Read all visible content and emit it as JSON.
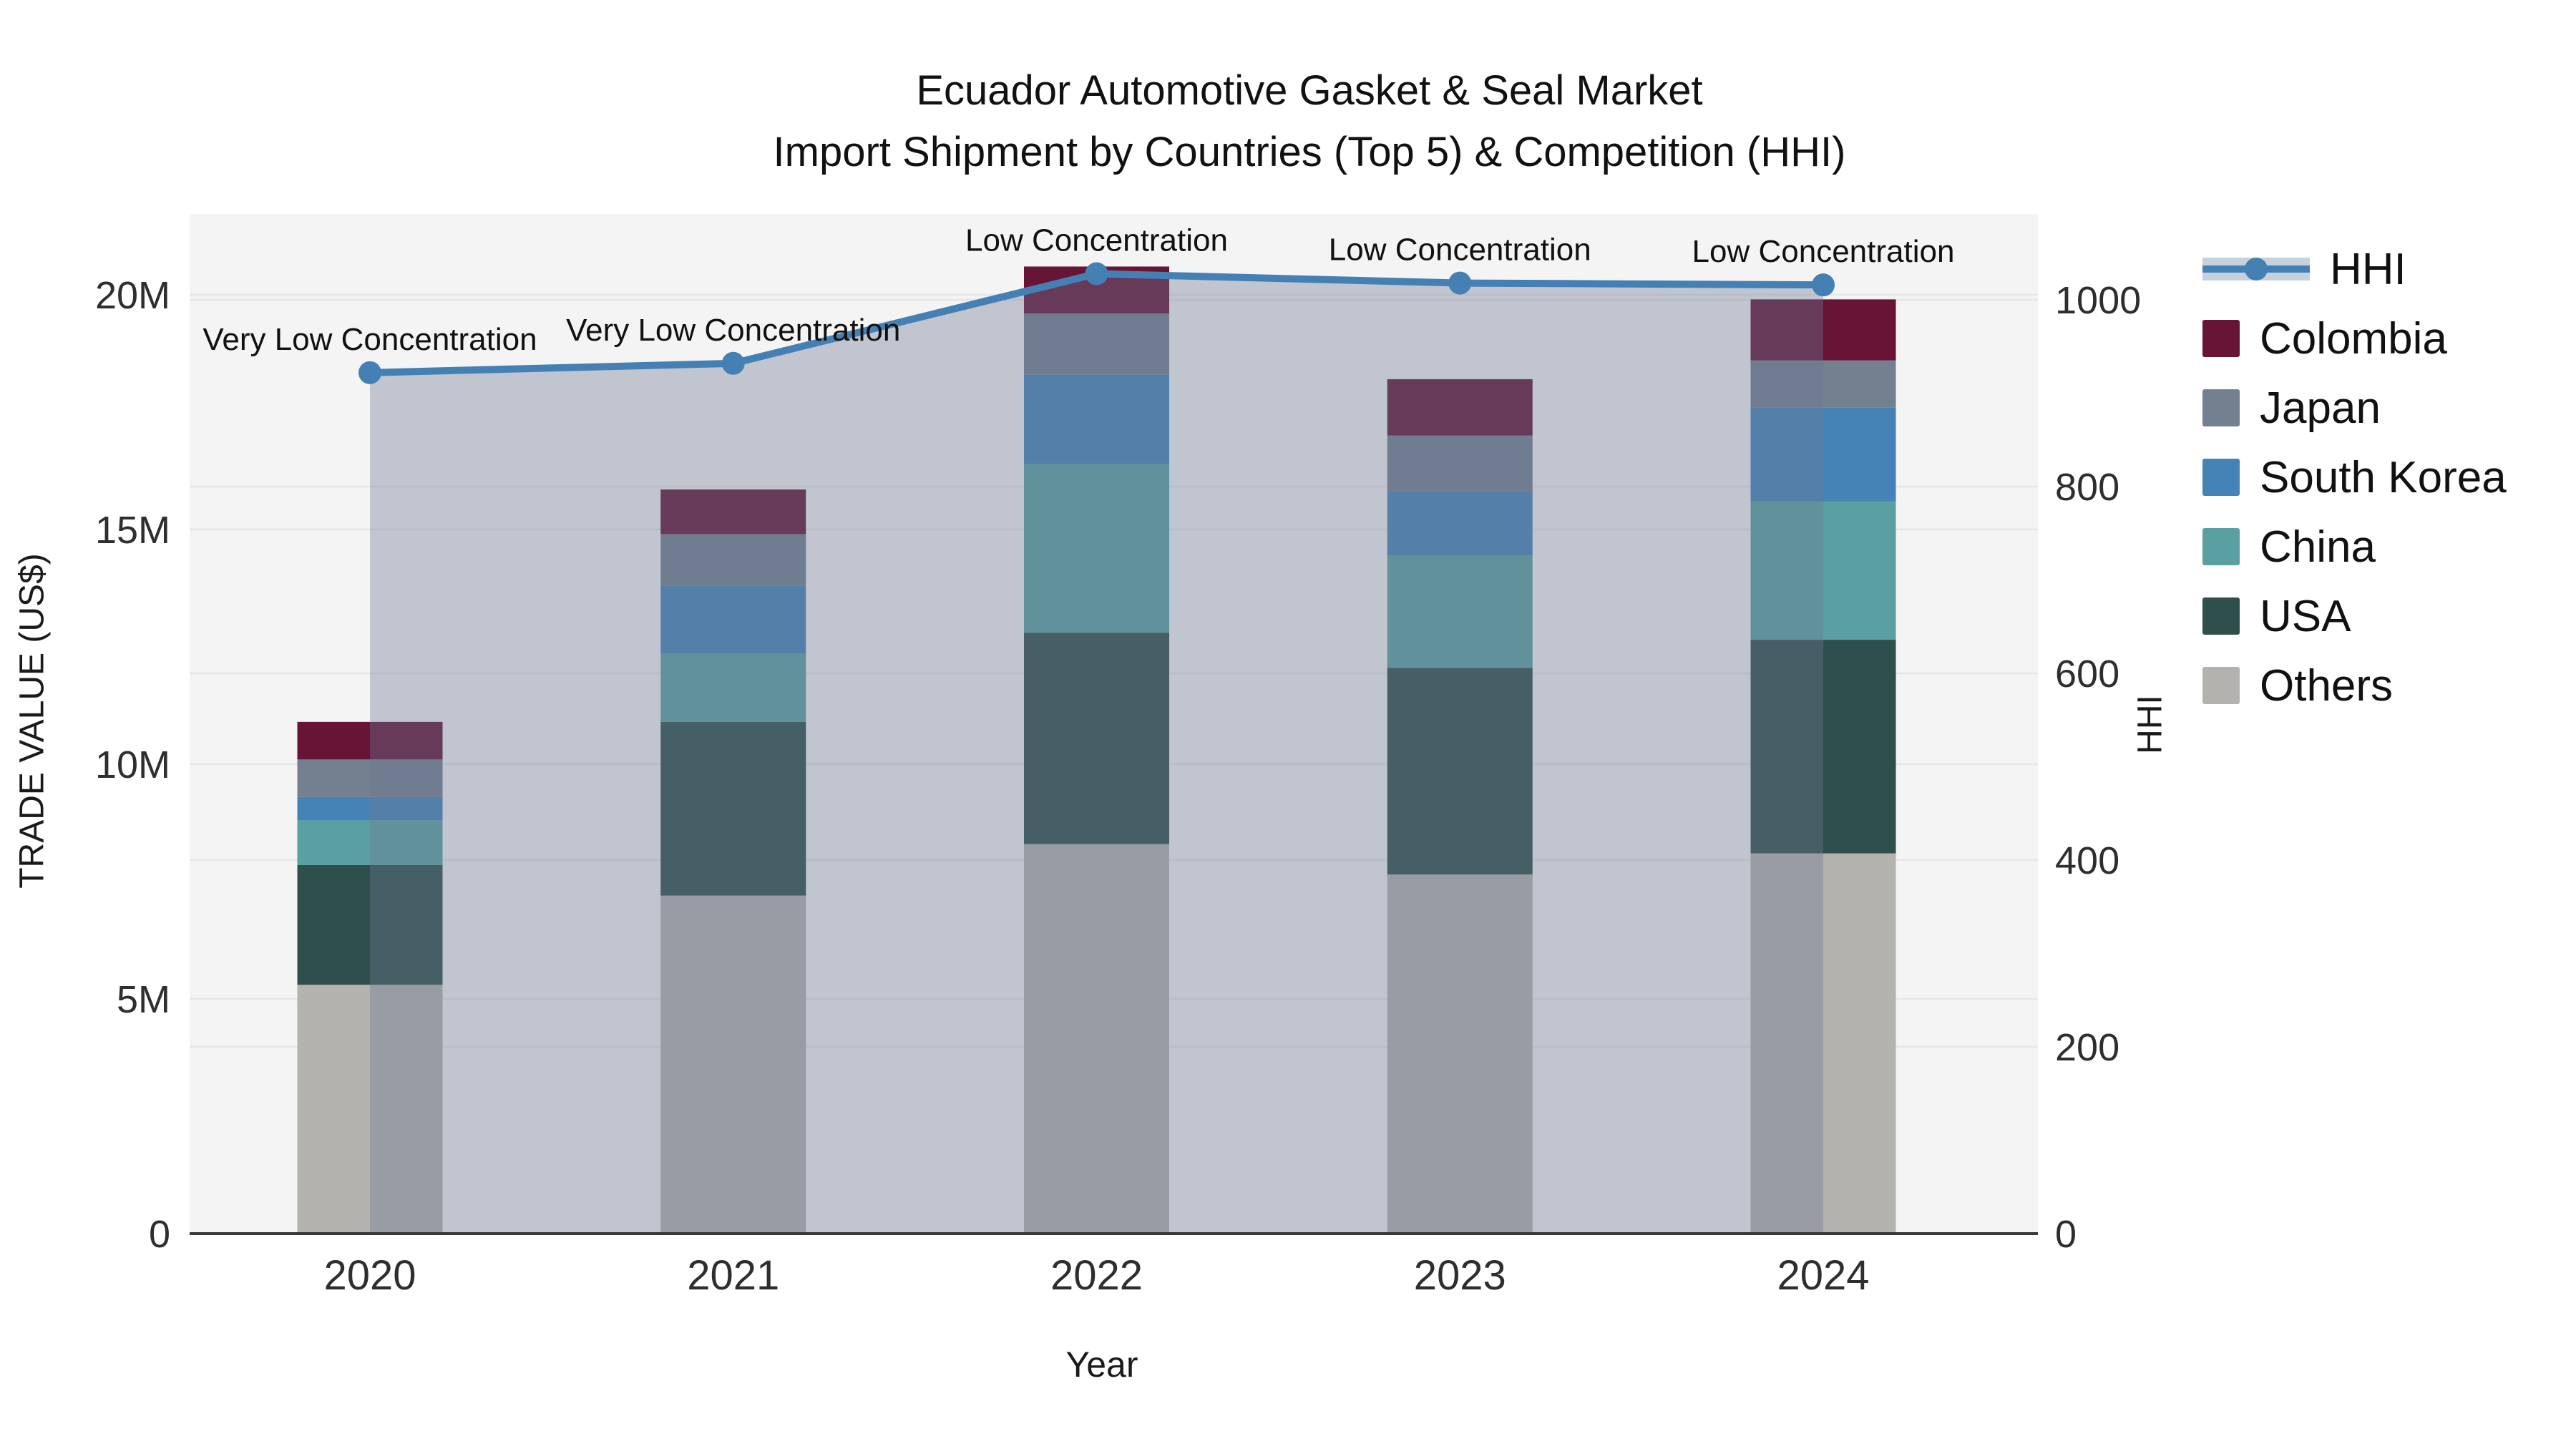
{
  "title": {
    "line1": "Ecuador Automotive Gasket & Seal Market",
    "line2": "Import Shipment by Countries (Top 5) & Competition (HHI)"
  },
  "axes": {
    "y_left_title": "TRADE VALUE (US$)",
    "y_right_title": "HHI",
    "x_title": "Year",
    "y_left_ticks": [
      {
        "value": 0,
        "label": "0"
      },
      {
        "value": 5,
        "label": "5M"
      },
      {
        "value": 10,
        "label": "10M"
      },
      {
        "value": 15,
        "label": "15M"
      },
      {
        "value": 20,
        "label": "20M"
      }
    ],
    "y_right_ticks": [
      {
        "value": 0,
        "label": "0"
      },
      {
        "value": 200,
        "label": "200"
      },
      {
        "value": 400,
        "label": "400"
      },
      {
        "value": 600,
        "label": "600"
      },
      {
        "value": 800,
        "label": "800"
      },
      {
        "value": 1000,
        "label": "1000"
      }
    ]
  },
  "legend": [
    {
      "label": "HHI",
      "type": "line"
    },
    {
      "label": "Colombia",
      "type": "swatch",
      "color": "#671437"
    },
    {
      "label": "Japan",
      "type": "swatch",
      "color": "#73808f"
    },
    {
      "label": "South Korea",
      "type": "swatch",
      "color": "#4583b7"
    },
    {
      "label": "China",
      "type": "swatch",
      "color": "#5ba0a0"
    },
    {
      "label": "USA",
      "type": "swatch",
      "color": "#2f4f4c"
    },
    {
      "label": "Others",
      "type": "swatch",
      "color": "#b3b2af"
    }
  ],
  "chart_data": {
    "type": "bar+line",
    "title": "Ecuador Automotive Gasket & Seal Market — Import Shipment by Countries (Top 5) & Competition (HHI)",
    "categories": [
      "2020",
      "2021",
      "2022",
      "2023",
      "2024"
    ],
    "stack_order": [
      "Others",
      "USA",
      "China",
      "South Korea",
      "Japan",
      "Colombia"
    ],
    "series": [
      {
        "name": "Others",
        "unit": "M US$",
        "values": [
          5.3,
          7.2,
          8.3,
          7.65,
          8.1
        ]
      },
      {
        "name": "USA",
        "unit": "M US$",
        "values": [
          2.55,
          3.7,
          4.5,
          4.4,
          4.55
        ]
      },
      {
        "name": "China",
        "unit": "M US$",
        "values": [
          0.95,
          1.45,
          3.6,
          2.4,
          2.95
        ]
      },
      {
        "name": "South Korea",
        "unit": "M US$",
        "values": [
          0.5,
          1.45,
          1.9,
          1.35,
          2.0
        ]
      },
      {
        "name": "Japan",
        "unit": "M US$",
        "values": [
          0.8,
          1.1,
          1.3,
          1.2,
          1.0
        ]
      },
      {
        "name": "Colombia",
        "unit": "M US$",
        "values": [
          0.8,
          0.95,
          1.0,
          1.2,
          1.3
        ]
      }
    ],
    "bar_totals_m": [
      10.9,
      15.85,
      20.6,
      18.2,
      19.9
    ],
    "hhi": {
      "name": "HHI",
      "values": [
        922,
        932,
        1028,
        1018,
        1016
      ]
    },
    "annotations": [
      "Very Low Concentration",
      "Very Low Concentration",
      "Low Concentration",
      "Low Concentration",
      "Low Concentration"
    ],
    "xlabel": "Year",
    "ylabel_left": "TRADE VALUE (US$)",
    "ylabel_right": "HHI",
    "left_axis_max_m": 21.72,
    "right_axis_max": 1092,
    "grid": true,
    "legend_position": "right",
    "colors": {
      "Colombia": "#671437",
      "Japan": "#73808f",
      "South Korea": "#4583b7",
      "China": "#5ba0a0",
      "USA": "#2f4f4c",
      "Others": "#b3b2af",
      "hhi_line": "#4580b4",
      "hhi_fill_overlay": "rgba(107,122,146,0.38)",
      "plot_bg": "#f4f4f4",
      "gridline": "#e7e7e7",
      "axis_line": "#3a3a3a",
      "tick_text": "#2e2e2e"
    }
  }
}
